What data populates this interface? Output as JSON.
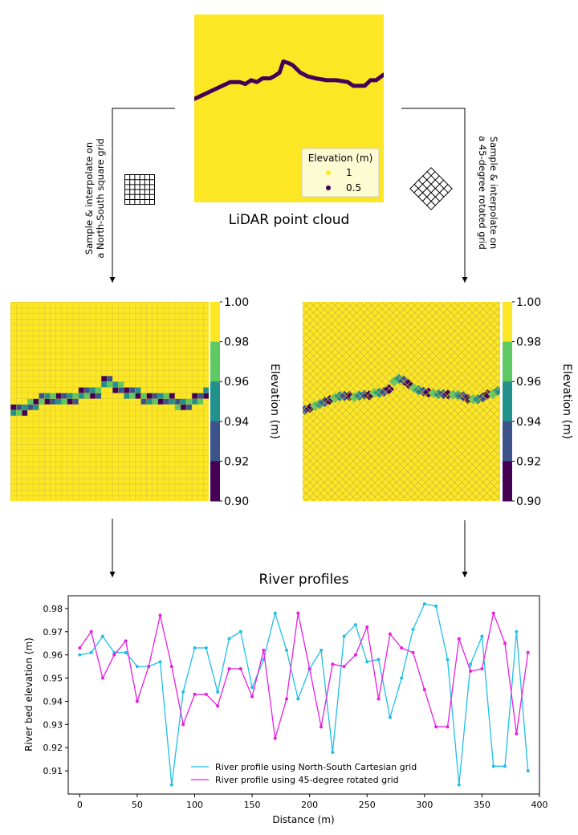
{
  "lidar": {
    "caption": "LiDAR point cloud",
    "legend_title": "Elevation (m)",
    "legend_items": [
      {
        "label": "1",
        "color": "#fde725"
      },
      {
        "label": "0.5",
        "color": "#440154"
      }
    ],
    "river_path": [
      [
        0,
        0.45
      ],
      [
        0.19,
        0.36
      ],
      [
        0.24,
        0.36
      ],
      [
        0.27,
        0.37
      ],
      [
        0.3,
        0.35
      ],
      [
        0.33,
        0.36
      ],
      [
        0.36,
        0.34
      ],
      [
        0.4,
        0.34
      ],
      [
        0.42,
        0.33
      ],
      [
        0.45,
        0.31
      ],
      [
        0.47,
        0.25
      ],
      [
        0.5,
        0.26
      ],
      [
        0.52,
        0.27
      ],
      [
        0.56,
        0.31
      ],
      [
        0.6,
        0.33
      ],
      [
        0.64,
        0.34
      ],
      [
        0.7,
        0.35
      ],
      [
        0.75,
        0.35
      ],
      [
        0.81,
        0.36
      ],
      [
        0.84,
        0.38
      ],
      [
        0.9,
        0.38
      ],
      [
        0.93,
        0.35
      ],
      [
        0.96,
        0.35
      ],
      [
        1.0,
        0.32
      ]
    ]
  },
  "left_branch": {
    "label_lines": [
      "Sample & interpolate on",
      "a North-South  square grid"
    ]
  },
  "right_branch": {
    "label_lines": [
      "Sample & interpolate on",
      "a 45-degree rotated grid"
    ]
  },
  "colorbar": {
    "label": "Elevation (m)",
    "ticks": [
      "1.00",
      "0.98",
      "0.96",
      "0.94",
      "0.92",
      "0.90"
    ],
    "colors": [
      "#fde725",
      "#5ec962",
      "#21918c",
      "#3b528b",
      "#440154"
    ]
  },
  "profiles": {
    "title": "River profiles"
  },
  "chart_data": {
    "type": "line",
    "xlabel": "Distance (m)",
    "ylabel": "River bed elevation (m)",
    "xlim": [
      -10,
      400
    ],
    "ylim": [
      0.9,
      0.9855
    ],
    "xticks": [
      0,
      50,
      100,
      150,
      200,
      250,
      300,
      350,
      400
    ],
    "yticks": [
      0.91,
      0.92,
      0.93,
      0.94,
      0.95,
      0.96,
      0.97,
      0.98
    ],
    "legend_position": "lower-center",
    "x": [
      0,
      10,
      20,
      30,
      40,
      50,
      60,
      70,
      80,
      90,
      100,
      110,
      120,
      130,
      140,
      150,
      160,
      170,
      180,
      190,
      200,
      210,
      220,
      230,
      240,
      250,
      260,
      270,
      280,
      290,
      300,
      310,
      320,
      330,
      340,
      350,
      360,
      370,
      380,
      390
    ],
    "series": [
      {
        "name": "River profile using North-South Cartesian grid",
        "color": "#1fbfe8",
        "values": [
          0.96,
          0.961,
          0.968,
          0.961,
          0.961,
          0.955,
          0.955,
          0.957,
          0.904,
          0.944,
          0.963,
          0.963,
          0.944,
          0.967,
          0.97,
          0.946,
          0.958,
          0.978,
          0.962,
          0.941,
          0.954,
          0.962,
          0.918,
          0.968,
          0.973,
          0.957,
          0.958,
          0.933,
          0.95,
          0.971,
          0.982,
          0.981,
          0.958,
          0.904,
          0.956,
          0.968,
          0.912,
          0.912,
          0.97,
          0.91
        ]
      },
      {
        "name": "River profile using 45-degree rotated grid",
        "color": "#e81fe0",
        "values": [
          0.963,
          0.97,
          0.95,
          0.96,
          0.966,
          0.94,
          0.955,
          0.977,
          0.955,
          0.93,
          0.943,
          0.943,
          0.938,
          0.954,
          0.954,
          0.942,
          0.962,
          0.924,
          0.941,
          0.978,
          0.954,
          0.929,
          0.956,
          0.955,
          0.96,
          0.972,
          0.941,
          0.969,
          0.963,
          0.961,
          0.945,
          0.929,
          0.929,
          0.967,
          0.953,
          0.954,
          0.978,
          0.965,
          0.926,
          0.961
        ]
      }
    ]
  }
}
